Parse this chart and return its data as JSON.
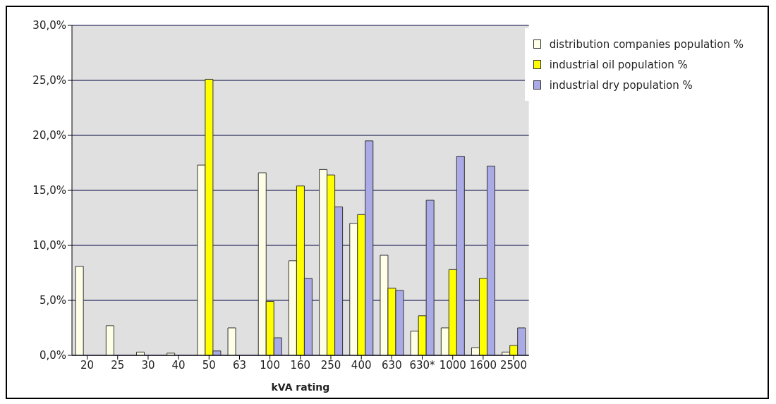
{
  "chart_data": {
    "type": "bar",
    "xlabel": "kVA rating",
    "categories": [
      "20",
      "25",
      "30",
      "40",
      "50",
      "63",
      "100",
      "160",
      "250",
      "400",
      "630",
      "630*",
      "1000",
      "1600",
      "2500"
    ],
    "series": [
      {
        "name": "distribution companies population %",
        "color": "#ffffe8",
        "values": [
          8.1,
          2.7,
          0.3,
          0.2,
          17.3,
          2.5,
          16.6,
          8.6,
          16.9,
          12.0,
          9.1,
          2.2,
          2.5,
          0.7,
          0.3
        ]
      },
      {
        "name": "industrial oil population %",
        "color": "#ffff00",
        "values": [
          null,
          null,
          null,
          null,
          25.1,
          null,
          4.9,
          15.4,
          16.4,
          12.8,
          6.1,
          3.6,
          7.8,
          7.0,
          0.9
        ]
      },
      {
        "name": "industrial dry population %",
        "color": "#aaaae6",
        "values": [
          null,
          null,
          null,
          null,
          0.4,
          null,
          1.6,
          7.0,
          13.5,
          19.5,
          5.9,
          14.1,
          18.1,
          17.2,
          2.5
        ]
      }
    ],
    "ylim": [
      0,
      30
    ],
    "yticks": [
      {
        "value": 0,
        "label": "0,0%"
      },
      {
        "value": 5,
        "label": "5,0%"
      },
      {
        "value": 10,
        "label": "10,0%"
      },
      {
        "value": 15,
        "label": "15,0%"
      },
      {
        "value": 20,
        "label": "20,0%"
      },
      {
        "value": 25,
        "label": "25,0%"
      },
      {
        "value": 30,
        "label": "30,0%"
      }
    ],
    "grid": "y",
    "legend": "top right"
  }
}
